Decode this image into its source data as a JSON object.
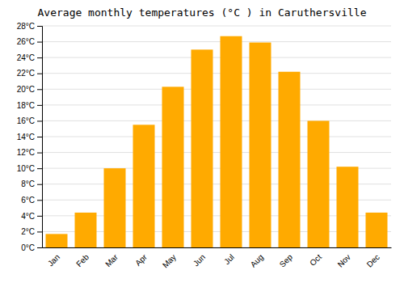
{
  "chart_data": {
    "type": "bar",
    "title": "Average monthly temperatures (°C ) in Caruthersville",
    "categories": [
      "Jan",
      "Feb",
      "Mar",
      "Apr",
      "May",
      "Jun",
      "Jul",
      "Aug",
      "Sep",
      "Oct",
      "Nov",
      "Dec"
    ],
    "values": [
      1.7,
      4.4,
      10.0,
      15.5,
      20.3,
      25.0,
      26.7,
      25.9,
      22.2,
      16.0,
      10.2,
      4.4
    ],
    "color": "#FFAA00",
    "ylim": [
      0,
      28
    ],
    "yticks": [
      {
        "value": 0,
        "label": "0°C"
      },
      {
        "value": 2,
        "label": "2°C"
      },
      {
        "value": 4,
        "label": "4°C"
      },
      {
        "value": 6,
        "label": "6°C"
      },
      {
        "value": 8,
        "label": "8°C"
      },
      {
        "value": 10,
        "label": "10°C"
      },
      {
        "value": 12,
        "label": "12°C"
      },
      {
        "value": 14,
        "label": "14°C"
      },
      {
        "value": 16,
        "label": "16°C"
      },
      {
        "value": 18,
        "label": "18°C"
      },
      {
        "value": 20,
        "label": "20°C"
      },
      {
        "value": 22,
        "label": "22°C"
      },
      {
        "value": 24,
        "label": "24°C"
      },
      {
        "value": 26,
        "label": "26°C"
      },
      {
        "value": 28,
        "label": "28°C"
      }
    ],
    "grid": true
  }
}
